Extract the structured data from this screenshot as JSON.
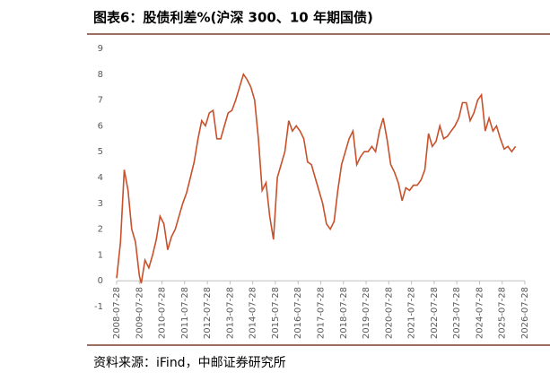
{
  "header": {
    "title": "图表6：股债利差%(沪深 300、10 年期国债)"
  },
  "chart_data": {
    "type": "line",
    "color": "#c8502a",
    "x": [
      "2008-07-28",
      "2008-09-28",
      "2008-11-28",
      "2009-01-28",
      "2009-03-28",
      "2009-05-28",
      "2009-07-28",
      "2009-08-28",
      "2009-10-28",
      "2009-12-28",
      "2010-02-28",
      "2010-04-28",
      "2010-06-28",
      "2010-08-28",
      "2010-10-28",
      "2010-12-28",
      "2011-02-28",
      "2011-04-28",
      "2011-06-28",
      "2011-08-28",
      "2011-10-28",
      "2011-12-28",
      "2012-02-28",
      "2012-04-28",
      "2012-06-28",
      "2012-08-28",
      "2012-10-28",
      "2012-12-28",
      "2013-02-28",
      "2013-04-28",
      "2013-06-28",
      "2013-08-28",
      "2013-10-28",
      "2013-12-28",
      "2014-02-28",
      "2014-04-28",
      "2014-06-28",
      "2014-08-28",
      "2014-10-28",
      "2014-12-28",
      "2015-02-28",
      "2015-04-28",
      "2015-06-28",
      "2015-08-28",
      "2015-10-28",
      "2015-12-28",
      "2016-02-28",
      "2016-04-28",
      "2016-06-28",
      "2016-08-28",
      "2016-10-28",
      "2016-12-28",
      "2017-02-28",
      "2017-04-28",
      "2017-06-28",
      "2017-08-28",
      "2017-10-28",
      "2017-12-28",
      "2018-02-28",
      "2018-04-28",
      "2018-06-28",
      "2018-08-28",
      "2018-10-28",
      "2018-12-28",
      "2019-02-28",
      "2019-04-28",
      "2019-06-28",
      "2019-08-28",
      "2019-10-28",
      "2019-12-28",
      "2020-02-28",
      "2020-04-28",
      "2020-06-28",
      "2020-08-28",
      "2020-10-28",
      "2020-12-28",
      "2021-02-28",
      "2021-04-28",
      "2021-06-28",
      "2021-08-28",
      "2021-10-28",
      "2021-12-28",
      "2022-02-28",
      "2022-04-28",
      "2022-06-28",
      "2022-08-28",
      "2022-10-28",
      "2022-12-28",
      "2023-02-28",
      "2023-04-28",
      "2023-06-28",
      "2023-08-28",
      "2023-10-28",
      "2023-12-28",
      "2024-02-28",
      "2024-04-28",
      "2024-06-28",
      "2024-08-28",
      "2024-10-28",
      "2024-12-28",
      "2025-02-28",
      "2025-04-28",
      "2025-06-28",
      "2025-08-28",
      "2025-10-28",
      "2025-12-28",
      "2026-02-28"
    ],
    "values": [
      0.1,
      1.5,
      4.3,
      3.5,
      2.0,
      1.5,
      0.2,
      -0.1,
      0.8,
      0.5,
      1.0,
      1.6,
      2.5,
      2.2,
      1.2,
      1.7,
      2.0,
      2.5,
      3.0,
      3.4,
      4.0,
      4.6,
      5.5,
      6.2,
      6.0,
      6.5,
      6.6,
      5.5,
      5.5,
      6.0,
      6.5,
      6.6,
      7.0,
      7.5,
      8.0,
      7.8,
      7.5,
      7.0,
      5.5,
      3.5,
      3.8,
      2.5,
      1.6,
      4.0,
      4.5,
      5.0,
      6.2,
      5.8,
      6.0,
      5.8,
      5.5,
      4.6,
      4.5,
      4.0,
      3.5,
      3.0,
      2.2,
      2.0,
      2.3,
      3.5,
      4.5,
      5.0,
      5.5,
      5.8,
      4.5,
      4.8,
      5.0,
      5.0,
      5.2,
      5.0,
      5.8,
      6.3,
      5.5,
      4.5,
      4.2,
      3.8,
      3.1,
      3.6,
      3.5,
      3.7,
      3.7,
      3.9,
      4.3,
      5.7,
      5.2,
      5.4,
      6.0,
      5.5,
      5.6,
      5.8,
      6.0,
      6.3,
      6.9,
      6.9,
      6.2,
      6.5,
      7.0,
      7.2,
      5.8,
      6.3,
      5.8,
      6.0,
      5.5,
      5.1,
      5.2,
      5.0,
      5.2
    ],
    "xlim": [
      "2008-07-28",
      "2026-07-28"
    ],
    "xticks": [
      "2008-07-28",
      "2009-07-28",
      "2010-07-28",
      "2011-07-28",
      "2012-07-28",
      "2013-07-28",
      "2014-07-28",
      "2015-07-28",
      "2016-07-28",
      "2017-07-28",
      "2018-07-28",
      "2019-07-28",
      "2020-07-28",
      "2021-07-28",
      "2022-07-28",
      "2023-07-28",
      "2024-07-28",
      "2025-07-28",
      "2026-07-28"
    ],
    "ylim": [
      -1,
      9
    ],
    "yticks": [
      -1,
      0,
      1,
      2,
      3,
      4,
      5,
      6,
      7,
      8,
      9
    ]
  },
  "footer": {
    "source": "资料来源：iFind，中邮证券研究所"
  }
}
